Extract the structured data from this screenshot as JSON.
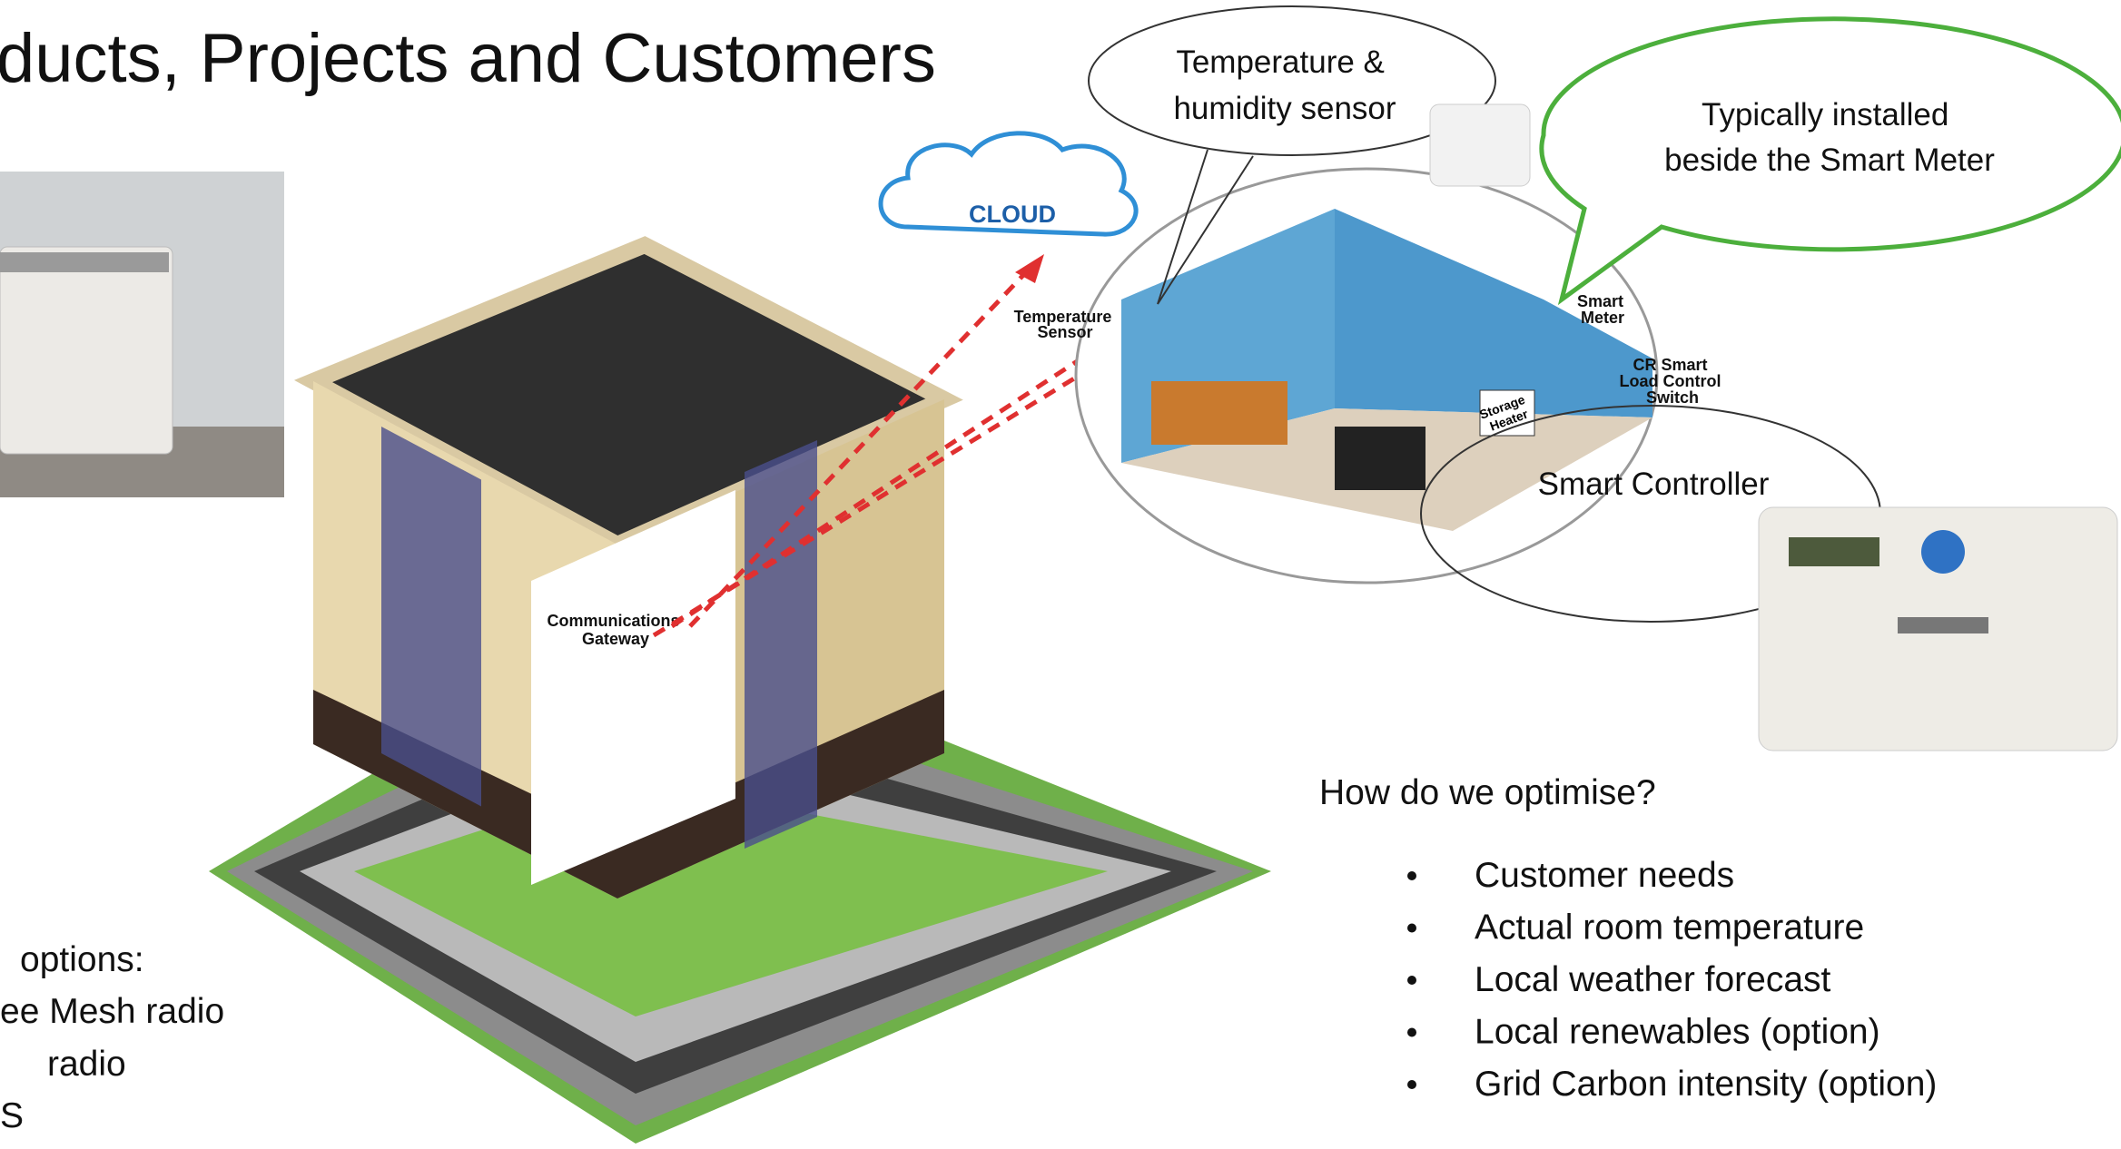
{
  "header": {
    "title": "ducts, Projects and Customers"
  },
  "bubbles": {
    "sensor": [
      "Temperature &",
      "humidity sensor"
    ],
    "meter_note": [
      "Typically installed",
      "beside the Smart Meter"
    ],
    "controller": "Smart Controller"
  },
  "diagram": {
    "cloud": "CLOUD",
    "temperature_sensor": [
      "Temperature",
      "Sensor"
    ],
    "smart_meter": [
      "Smart",
      "Meter"
    ],
    "load_switch": [
      "CR Smart",
      "Load Control",
      "Switch"
    ],
    "storage_heater": [
      "Storage",
      "Heater"
    ],
    "gateway": [
      "Communications",
      "Gateway"
    ]
  },
  "optimise": {
    "heading": "How do we optimise?",
    "items": [
      "Customer needs",
      "Actual room temperature",
      "Local weather forecast",
      "Local renewables (option)",
      "Grid Carbon intensity (option)"
    ]
  },
  "connectivity": {
    "lines": [
      "options:",
      "ee Mesh radio",
      "radio",
      "S"
    ]
  }
}
